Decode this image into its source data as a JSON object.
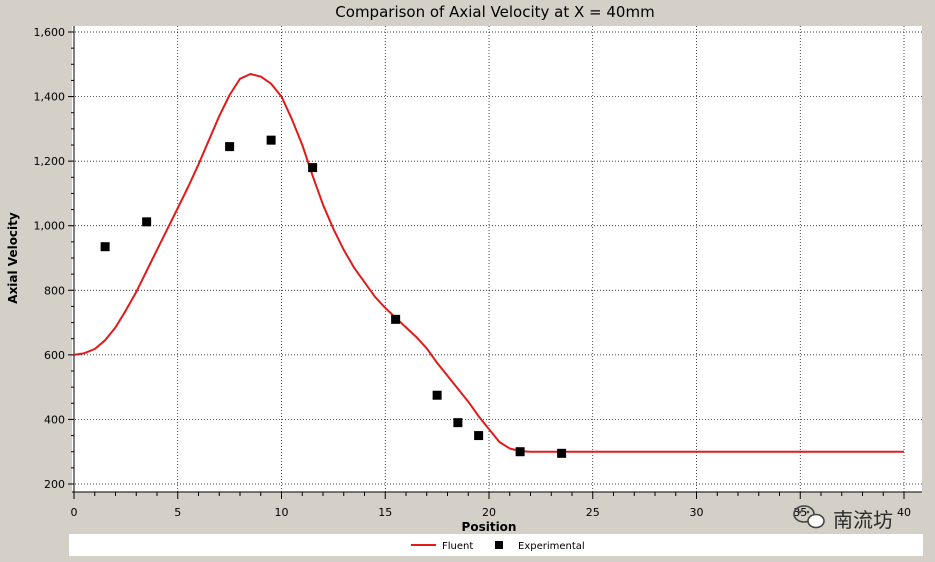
{
  "chart_data": {
    "type": "line",
    "title": "Comparison of Axial Velocity at X = 40mm",
    "xlabel": "Position",
    "ylabel": "Axial Velocity",
    "xlim": [
      0,
      40
    ],
    "ylim": [
      200,
      1600
    ],
    "xticks": [
      0,
      5,
      10,
      15,
      20,
      25,
      30,
      35,
      40
    ],
    "yticks": [
      200,
      400,
      600,
      800,
      1000,
      1200,
      1400,
      1600
    ],
    "xtick_labels": [
      "0",
      "5",
      "10",
      "15",
      "20",
      "25",
      "30",
      "35",
      "40"
    ],
    "ytick_labels": [
      "200",
      "400",
      "600",
      "800",
      "1,000",
      "1,200",
      "1,400",
      "1,600"
    ],
    "grid": true,
    "legend_position": "bottom",
    "series": [
      {
        "name": "Fluent",
        "kind": "line",
        "color": "#e31a1a",
        "x": [
          0,
          0.5,
          1,
          1.5,
          2,
          2.5,
          3,
          3.5,
          4,
          4.5,
          5,
          5.5,
          6,
          6.5,
          7,
          7.5,
          8,
          8.5,
          9,
          9.5,
          10,
          10.5,
          11,
          11.5,
          12,
          12.5,
          13,
          13.5,
          14,
          14.5,
          15,
          15.5,
          16,
          16.5,
          17,
          17.5,
          18,
          18.5,
          19,
          19.5,
          20,
          20.5,
          21,
          21.5,
          22,
          22.5,
          23,
          24,
          26,
          28,
          30,
          32,
          34,
          36,
          38,
          40
        ],
        "y": [
          600,
          605,
          618,
          645,
          685,
          738,
          795,
          860,
          925,
          990,
          1055,
          1120,
          1190,
          1265,
          1340,
          1405,
          1455,
          1470,
          1462,
          1440,
          1400,
          1330,
          1250,
          1155,
          1065,
          990,
          925,
          870,
          825,
          780,
          745,
          715,
          685,
          655,
          620,
          575,
          535,
          495,
          455,
          410,
          370,
          330,
          310,
          302,
          300,
          300,
          300,
          300,
          300,
          300,
          300,
          300,
          300,
          300,
          300,
          300
        ]
      },
      {
        "name": "Experimental",
        "kind": "scatter",
        "color": "#000000",
        "x": [
          1.5,
          3.5,
          7.5,
          9.5,
          11.5,
          15.5,
          17.5,
          18.5,
          19.5,
          21.5,
          23.5
        ],
        "y": [
          935,
          1012,
          1245,
          1265,
          1180,
          710,
          475,
          390,
          350,
          300,
          295
        ]
      }
    ]
  },
  "watermark": {
    "text": "南流坊",
    "icon": "wechat-icon"
  },
  "colors": {
    "window_bg": "#d4d0c8",
    "plot_bg": "#ffffff",
    "grid": "#000000",
    "line": "#e31a1a",
    "marker": "#000000"
  }
}
